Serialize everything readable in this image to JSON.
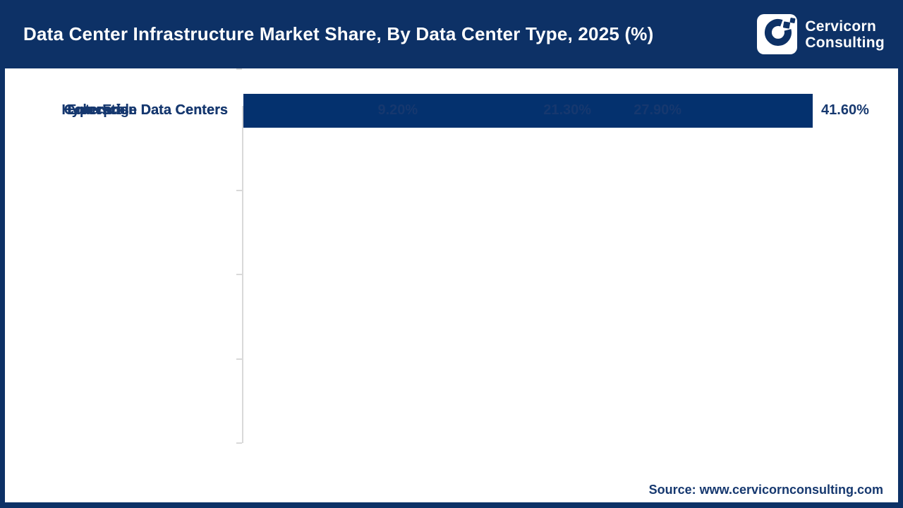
{
  "header": {
    "title": "Data Center Infrastructure Market Share, By Data Center Type, 2025 (%)",
    "logo": {
      "line1": "Cervicorn",
      "line2": "Consulting"
    }
  },
  "chart_data": {
    "type": "bar",
    "orientation": "horizontal",
    "title": "Data Center Infrastructure Market Share, By Data Center Type, 2025 (%)",
    "categories": [
      "Hyperscale Data Centers",
      "Enterprise Data Centers",
      "Colocation Data Centers",
      "Edge Data Centers"
    ],
    "values": [
      41.6,
      27.9,
      21.3,
      9.2
    ],
    "value_labels": [
      "41.60%",
      "27.90%",
      "21.30%",
      "9.20%"
    ],
    "xlabel": "",
    "ylabel": "",
    "xlim": [
      0,
      45
    ],
    "grid": false,
    "legend": "none",
    "bar_color": "#04316e"
  },
  "footer": {
    "source": "Source: www.cervicornconsulting.com"
  },
  "colors": {
    "header_bg": "#0d3166",
    "bar": "#04316e",
    "text_navy": "#16386f",
    "axis": "#d9d9d9",
    "title_text": "#ffffff"
  }
}
